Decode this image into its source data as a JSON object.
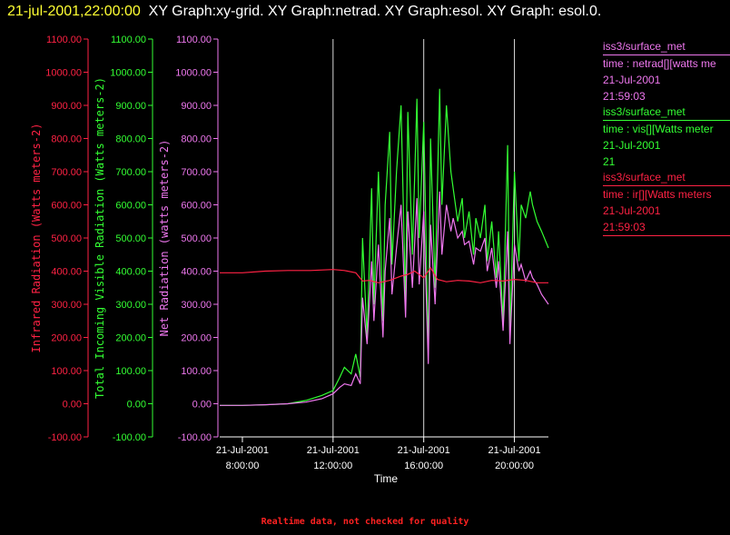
{
  "header": {
    "timestamp": "21-jul-2001,22:00:00",
    "title": "XY Graph:xy-grid.  XY Graph:netrad.  XY Graph:esol.  XY Graph: esol.0."
  },
  "colors": {
    "background": "#000000",
    "ir": "#ff2244",
    "vis": "#33ff33",
    "net": "#ee77ee",
    "grid": "#ffffff",
    "timestamp": "#ffff33",
    "footnote": "#ff2222"
  },
  "legend": [
    {
      "line1": "iss3/surface_met",
      "line2": "time : netrad[][watts me",
      "line3": "21-Jul-2001",
      "line4": "21:59:03",
      "color": "#ee77ee"
    },
    {
      "line1": "iss3/surface_met",
      "line2": "time : vis[][Watts meter",
      "line3": "21-Jul-2001",
      "line4": "21",
      "color": "#33ff33"
    },
    {
      "line1": "iss3/surface_met",
      "line2": "time : ir[][Watts meters",
      "line3": "21-Jul-2001",
      "line4": "21:59:03",
      "color": "#ff2244"
    }
  ],
  "footnote": "Realtime data, not checked for quality",
  "chart_data": {
    "type": "line",
    "xlabel": "Time",
    "x_range_hours": [
      7.0,
      21.5
    ],
    "x_ticks": [
      {
        "hour": 8,
        "date": "21-Jul-2001",
        "time": "8:00:00"
      },
      {
        "hour": 12,
        "date": "21-Jul-2001",
        "time": "12:00:00"
      },
      {
        "hour": 16,
        "date": "21-Jul-2001",
        "time": "16:00:00"
      },
      {
        "hour": 20,
        "date": "21-Jul-2001",
        "time": "20:00:00"
      }
    ],
    "grid_vertical_hours": [
      12,
      16,
      20
    ],
    "axes": [
      {
        "id": "ir",
        "label": "Infrared Radiation (Watts meters-2)",
        "ylim": [
          -100,
          1100
        ],
        "ticks": [
          "1100.00",
          "1000.00",
          "900.00",
          "800.00",
          "700.00",
          "600.00",
          "500.00",
          "400.00",
          "300.00",
          "200.00",
          "100.00",
          "0.00",
          "-100.00"
        ]
      },
      {
        "id": "vis",
        "label": "Total Incoming Visible Radiation (Watts meters-2)",
        "ylim": [
          -100,
          1100
        ],
        "ticks": [
          "1100.00",
          "1000.00",
          "900.00",
          "800.00",
          "700.00",
          "600.00",
          "500.00",
          "400.00",
          "300.00",
          "200.00",
          "100.00",
          "0.00",
          "-100.00"
        ]
      },
      {
        "id": "net",
        "label": "Net Radiation (watts meters-2)",
        "ylim": [
          -100,
          1100
        ],
        "ticks": [
          "1100.00",
          "1000.00",
          "900.00",
          "800.00",
          "700.00",
          "600.00",
          "500.00",
          "400.00",
          "300.00",
          "200.00",
          "100.00",
          "0.00",
          "-100.00"
        ]
      }
    ],
    "series": [
      {
        "id": "vis",
        "x": [
          7.0,
          8.0,
          9.0,
          10.0,
          10.8,
          11.5,
          12.0,
          12.3,
          12.5,
          12.8,
          13.0,
          13.2,
          13.3,
          13.5,
          13.7,
          13.8,
          14.0,
          14.2,
          14.3,
          14.5,
          14.6,
          14.8,
          15.0,
          15.2,
          15.3,
          15.5,
          15.7,
          15.8,
          16.0,
          16.2,
          16.3,
          16.5,
          16.7,
          16.8,
          17.0,
          17.2,
          17.3,
          17.5,
          17.7,
          17.8,
          18.0,
          18.2,
          18.3,
          18.5,
          18.7,
          18.8,
          19.0,
          19.2,
          19.3,
          19.5,
          19.7,
          19.8,
          20.0,
          20.2,
          20.3,
          20.5,
          20.7,
          20.8,
          21.0,
          21.2,
          21.5
        ],
        "values": [
          -5,
          -5,
          -3,
          0,
          10,
          25,
          40,
          80,
          110,
          90,
          150,
          80,
          500,
          200,
          650,
          300,
          700,
          250,
          600,
          820,
          420,
          700,
          900,
          300,
          880,
          450,
          920,
          500,
          850,
          150,
          800,
          350,
          950,
          600,
          900,
          700,
          650,
          550,
          620,
          500,
          580,
          450,
          560,
          500,
          600,
          430,
          550,
          380,
          520,
          250,
          780,
          200,
          700,
          430,
          600,
          560,
          640,
          600,
          550,
          520,
          470
        ]
      },
      {
        "id": "net",
        "x": [
          7.0,
          8.0,
          9.0,
          10.0,
          10.8,
          11.5,
          12.0,
          12.3,
          12.5,
          12.8,
          13.0,
          13.2,
          13.3,
          13.5,
          13.7,
          13.8,
          14.0,
          14.2,
          14.3,
          14.5,
          14.6,
          14.8,
          15.0,
          15.2,
          15.3,
          15.5,
          15.7,
          15.8,
          16.0,
          16.2,
          16.3,
          16.5,
          16.7,
          16.8,
          17.0,
          17.2,
          17.3,
          17.5,
          17.7,
          17.8,
          18.0,
          18.2,
          18.3,
          18.5,
          18.7,
          18.8,
          19.0,
          19.2,
          19.3,
          19.5,
          19.7,
          19.8,
          20.0,
          20.2,
          20.3,
          20.5,
          20.7,
          20.8,
          21.0,
          21.2,
          21.5
        ],
        "values": [
          -5,
          -5,
          -3,
          0,
          5,
          15,
          30,
          50,
          60,
          55,
          90,
          60,
          320,
          180,
          430,
          250,
          480,
          200,
          400,
          560,
          330,
          470,
          600,
          260,
          580,
          350,
          620,
          360,
          580,
          120,
          540,
          300,
          640,
          450,
          600,
          520,
          560,
          500,
          520,
          480,
          490,
          420,
          470,
          460,
          500,
          400,
          470,
          350,
          430,
          220,
          520,
          180,
          480,
          400,
          420,
          370,
          400,
          380,
          360,
          330,
          300
        ]
      },
      {
        "id": "ir",
        "x": [
          7.0,
          8.0,
          9.0,
          10.0,
          11.0,
          12.0,
          12.5,
          13.0,
          13.3,
          13.6,
          14.0,
          14.5,
          15.0,
          15.3,
          15.6,
          16.0,
          16.3,
          16.6,
          17.0,
          17.5,
          18.0,
          18.5,
          19.0,
          19.5,
          20.0,
          20.5,
          21.0,
          21.5
        ],
        "values": [
          395,
          395,
          400,
          402,
          402,
          405,
          402,
          395,
          370,
          372,
          365,
          372,
          385,
          390,
          400,
          380,
          410,
          375,
          368,
          372,
          370,
          365,
          372,
          370,
          375,
          372,
          365,
          365
        ]
      }
    ]
  }
}
